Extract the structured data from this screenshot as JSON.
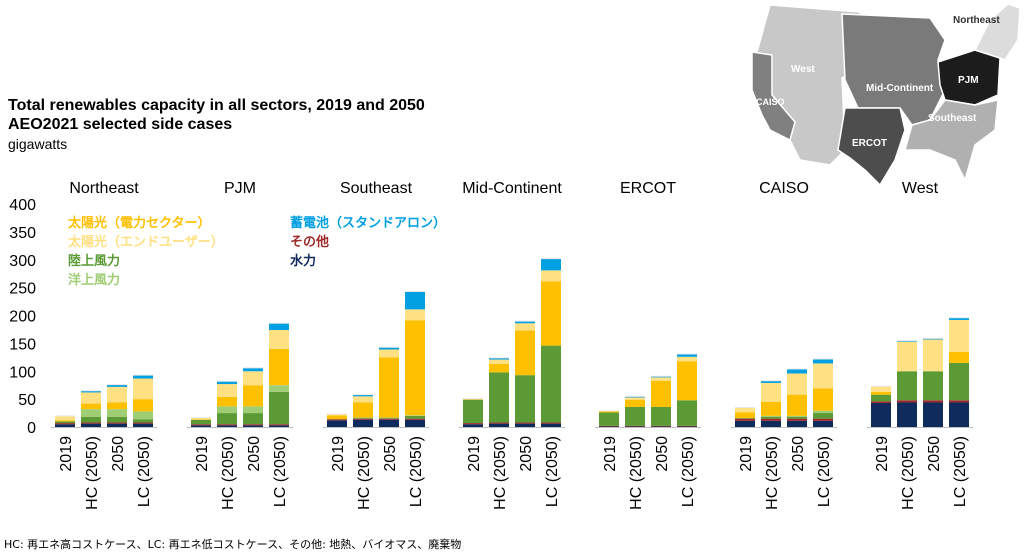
{
  "title_line1": "Total renewables capacity in all sectors, 2019 and 2050",
  "title_line2": "AEO2021 selected side cases",
  "unit": "gigawatts",
  "footnote": "HC: 再エネ高コストケース、LC: 再エネ低コストケース、その他: 地熱、バイオマス、廃棄物",
  "map": {
    "labels": [
      "Northeast",
      "West",
      "PJM",
      "Mid-Continent",
      "CAISO",
      "Southeast",
      "ERCOT"
    ]
  },
  "chart_data": {
    "type": "bar",
    "stacked": true,
    "ylim": [
      0,
      400
    ],
    "yticks": [
      0,
      50,
      100,
      150,
      200,
      250,
      300,
      350,
      400
    ],
    "case_labels": [
      "2019",
      "HC (2050)",
      "2050",
      "LC (2050)"
    ],
    "regions": [
      "Northeast",
      "PJM",
      "Southeast",
      "Mid-Continent",
      "ERCOT",
      "CAISO",
      "West"
    ],
    "series": [
      {
        "name": "水力",
        "color": "#0f2a5c",
        "values": [
          [
            5,
            6,
            6,
            6
          ],
          [
            3,
            3,
            3,
            3
          ],
          [
            12,
            13,
            13,
            13
          ],
          [
            5,
            6,
            6,
            6
          ],
          [
            1,
            1,
            1,
            1
          ],
          [
            11,
            11,
            11,
            11
          ],
          [
            43,
            44,
            44,
            44
          ]
        ]
      },
      {
        "name": "その他",
        "color": "#9e2a2b",
        "values": [
          [
            2,
            2,
            2,
            2
          ],
          [
            2,
            2,
            2,
            2
          ],
          [
            2,
            2,
            2,
            2
          ],
          [
            2,
            2,
            2,
            2
          ],
          [
            1,
            1,
            1,
            1
          ],
          [
            4,
            4,
            4,
            4
          ],
          [
            3,
            4,
            4,
            4
          ]
        ]
      },
      {
        "name": "陸上風力",
        "color": "#5b9a35",
        "values": [
          [
            3,
            10,
            10,
            6
          ],
          [
            8,
            20,
            20,
            58
          ],
          [
            0,
            1,
            1,
            5
          ],
          [
            42,
            90,
            85,
            138
          ],
          [
            24,
            34,
            34,
            46
          ],
          [
            1,
            3,
            3,
            10
          ],
          [
            12,
            52,
            52,
            67
          ]
        ]
      },
      {
        "name": "洋上風力",
        "color": "#9fcd75",
        "values": [
          [
            0,
            14,
            14,
            14
          ],
          [
            0,
            12,
            12,
            12
          ],
          [
            0,
            1,
            1,
            1
          ],
          [
            0,
            0,
            0,
            0
          ],
          [
            0,
            0,
            0,
            0
          ],
          [
            0,
            2,
            2,
            4
          ],
          [
            0,
            0,
            0,
            0
          ]
        ]
      },
      {
        "name": "太陽光（電力セクター）",
        "color": "#ffc000",
        "values": [
          [
            2,
            10,
            12,
            22
          ],
          [
            1,
            17,
            38,
            65
          ],
          [
            7,
            27,
            108,
            170
          ],
          [
            1,
            15,
            80,
            115
          ],
          [
            2,
            13,
            47,
            70
          ],
          [
            10,
            25,
            38,
            40
          ],
          [
            5,
            0,
            0,
            20
          ]
        ]
      },
      {
        "name": "太陽光（エンドユーザー）",
        "color": "#ffe082",
        "values": [
          [
            8,
            20,
            28,
            37
          ],
          [
            3,
            23,
            25,
            34
          ],
          [
            2,
            11,
            14,
            20
          ],
          [
            1,
            8,
            13,
            20
          ],
          [
            1,
            4,
            6,
            8
          ],
          [
            9,
            34,
            38,
            45
          ],
          [
            10,
            53,
            57,
            57
          ]
        ]
      },
      {
        "name": "蓄電池（スタンドアロン）",
        "color": "#00a0e3",
        "values": [
          [
            0,
            3,
            4,
            6
          ],
          [
            0,
            5,
            6,
            12
          ],
          [
            0,
            3,
            4,
            32
          ],
          [
            0,
            3,
            4,
            21
          ],
          [
            0,
            2,
            2,
            5
          ],
          [
            0,
            4,
            8,
            8
          ],
          [
            0,
            2,
            2,
            4
          ]
        ]
      }
    ]
  },
  "legend": {
    "left": [
      "太陽光（電力セクター）",
      "太陽光（エンドユーザー）",
      "陸上風力",
      "洋上風力"
    ],
    "right": [
      "蓄電池（スタンドアロン）",
      "その他",
      "水力"
    ]
  }
}
